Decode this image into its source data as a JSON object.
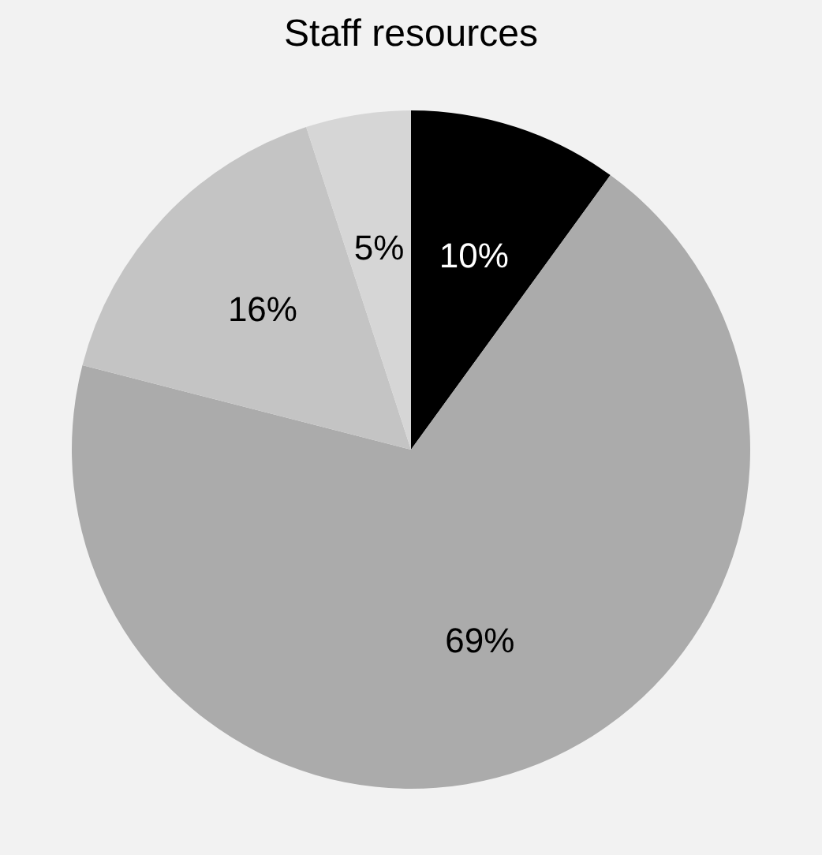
{
  "chart_data": {
    "type": "pie",
    "title": "Staff resources",
    "categories": [
      null,
      null,
      null,
      null
    ],
    "values": [
      10,
      69,
      16,
      5
    ],
    "colors": [
      "#000000",
      "#ababab",
      "#c4c4c4",
      "#d6d6d6"
    ],
    "value_labels": [
      "10%",
      "69%",
      "16%",
      "5%"
    ],
    "legend": false
  }
}
